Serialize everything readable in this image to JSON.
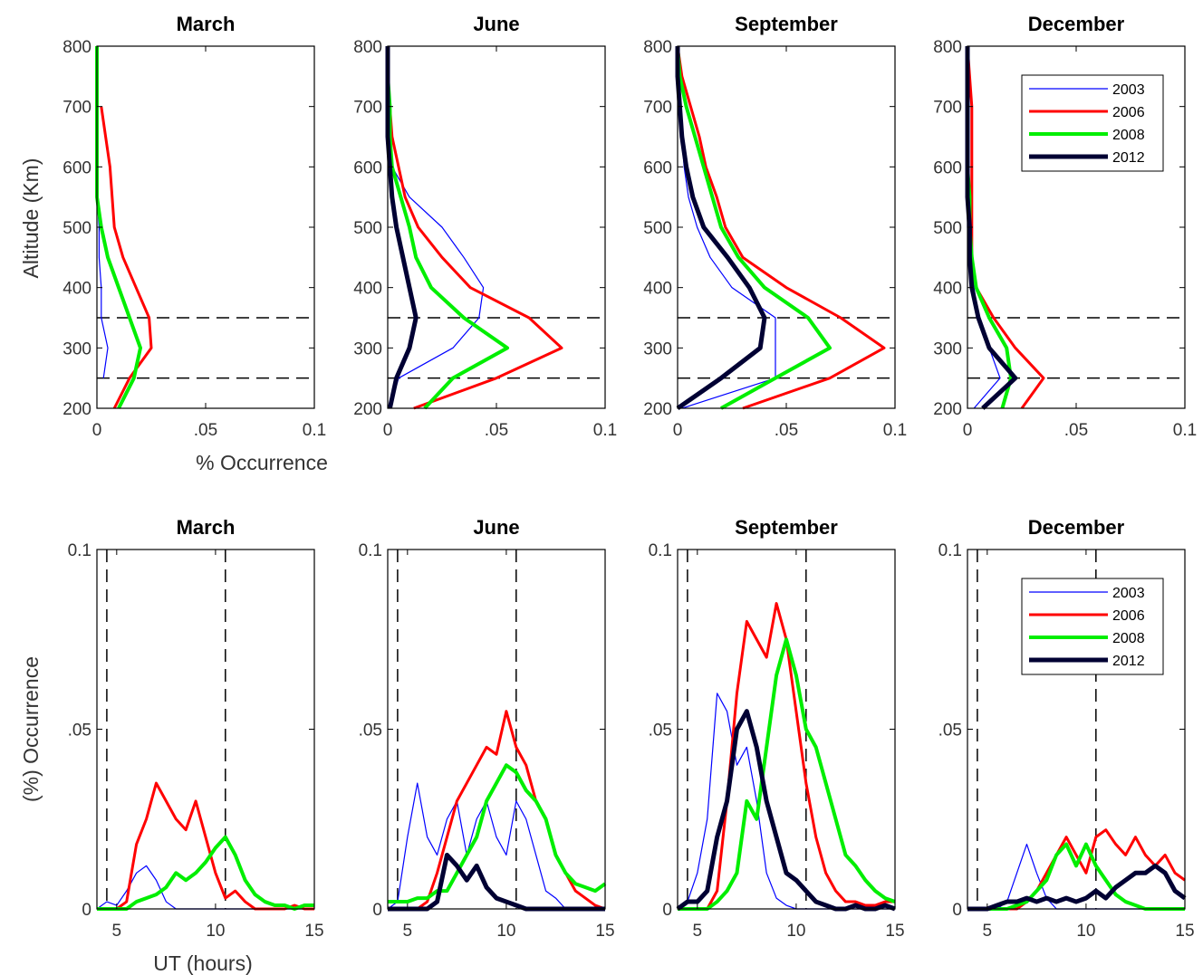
{
  "chart_data": [
    {
      "type": "line",
      "title": "March",
      "xlabel": "% Occurrence",
      "ylabel": "Altitude (Km)",
      "y": [
        200,
        250,
        300,
        350,
        400,
        450,
        500,
        550,
        600,
        650,
        700,
        750,
        800
      ],
      "series": [
        {
          "color": "#0000ff",
          "values": [
            null,
            0.003,
            0.005,
            0.002,
            0.002,
            0.001,
            0.001,
            0,
            null,
            null,
            null,
            null,
            null
          ]
        },
        {
          "color": "#ff0000",
          "values": [
            0.008,
            0.015,
            0.025,
            0.024,
            0.018,
            0.012,
            0.008,
            0.007,
            0.006,
            0.004,
            0.002,
            null,
            null
          ]
        },
        {
          "color": "#00ee00",
          "values": [
            0.01,
            0.017,
            0.02,
            0.015,
            0.01,
            0.005,
            0.002,
            0,
            0,
            0,
            0,
            0,
            0
          ]
        }
      ],
      "hlines": [
        250,
        350
      ],
      "xlim": [
        0,
        0.1
      ],
      "xticks": [
        0,
        {
          "value": 0.05,
          "label": ".05"
        },
        0.1
      ],
      "ylim": [
        200,
        800
      ],
      "yticks": [
        200,
        300,
        400,
        500,
        600,
        700,
        800
      ]
    },
    {
      "type": "line",
      "title": "June",
      "y": [
        200,
        250,
        300,
        350,
        400,
        450,
        500,
        550,
        600,
        650,
        700,
        750,
        800
      ],
      "series": [
        {
          "color": "#0000ff",
          "values": [
            0.001,
            0.005,
            0.03,
            0.042,
            0.044,
            0.035,
            0.025,
            0.01,
            0.002,
            0.001,
            0.001,
            0,
            0
          ]
        },
        {
          "color": "#ff0000",
          "values": [
            0.012,
            0.05,
            0.08,
            0.065,
            0.038,
            0.025,
            0.014,
            0.008,
            0.005,
            0.002,
            0.001,
            0,
            0
          ]
        },
        {
          "color": "#00ee00",
          "values": [
            0.017,
            0.03,
            0.055,
            0.035,
            0.02,
            0.013,
            0.01,
            0.006,
            0.002,
            0.001,
            0.001,
            0,
            0
          ]
        },
        {
          "color": "#000033",
          "values": [
            0.001,
            0.004,
            0.01,
            0.013,
            0.01,
            0.007,
            0.004,
            0.002,
            0.001,
            0,
            0,
            0,
            0
          ]
        }
      ],
      "hlines": [
        250,
        350
      ],
      "xlim": [
        0,
        0.1
      ],
      "xticks": [
        0,
        {
          "value": 0.05,
          "label": ".05"
        },
        0.1
      ],
      "ylim": [
        200,
        800
      ],
      "yticks": [
        200,
        300,
        400,
        500,
        600,
        700,
        800
      ]
    },
    {
      "type": "line",
      "title": "September",
      "y": [
        200,
        250,
        300,
        350,
        400,
        450,
        500,
        550,
        600,
        650,
        700,
        750,
        800
      ],
      "series": [
        {
          "color": "#0000ff",
          "values": [
            0.002,
            0.045,
            0.045,
            0.045,
            0.025,
            0.015,
            0.009,
            0.005,
            0.003,
            0.002,
            0.001,
            0,
            0
          ]
        },
        {
          "color": "#ff0000",
          "values": [
            0.03,
            0.07,
            0.095,
            0.075,
            0.05,
            0.03,
            0.022,
            0.018,
            0.013,
            0.01,
            0.006,
            0.002,
            0
          ]
        },
        {
          "color": "#00ee00",
          "values": [
            0.02,
            0.045,
            0.07,
            0.06,
            0.04,
            0.028,
            0.02,
            0.016,
            0.012,
            0.008,
            0.004,
            0.001,
            0
          ]
        },
        {
          "color": "#000033",
          "values": [
            0,
            0.02,
            0.038,
            0.04,
            0.033,
            0.023,
            0.012,
            0.007,
            0.004,
            0.002,
            0.001,
            0,
            0
          ]
        }
      ],
      "hlines": [
        250,
        350
      ],
      "xlim": [
        0,
        0.1
      ],
      "xticks": [
        0,
        {
          "value": 0.05,
          "label": ".05"
        },
        0.1
      ],
      "ylim": [
        200,
        800
      ],
      "yticks": [
        200,
        300,
        400,
        500,
        600,
        700,
        800
      ]
    },
    {
      "type": "line",
      "title": "December",
      "legend": "upper right",
      "y": [
        200,
        250,
        300,
        350,
        400,
        450,
        500,
        550,
        600,
        650,
        700,
        750,
        800
      ],
      "series": [
        {
          "name": "2003",
          "color": "#0000ff",
          "values": [
            0.003,
            0.015,
            0.01,
            0.005,
            0.003,
            0.001,
            0,
            0,
            0,
            0,
            0,
            0,
            0
          ]
        },
        {
          "name": "2006",
          "color": "#ff0000",
          "values": [
            0.025,
            0.035,
            0.022,
            0.012,
            0.004,
            0.002,
            0.002,
            0.002,
            0.002,
            0.002,
            0.002,
            0.001,
            0
          ]
        },
        {
          "name": "2008",
          "color": "#00ee00",
          "values": [
            0.016,
            0.02,
            0.018,
            0.01,
            0.004,
            0.002,
            0.001,
            0.001,
            0,
            0,
            0,
            0,
            0
          ]
        },
        {
          "name": "2012",
          "color": "#000033",
          "values": [
            0.007,
            0.022,
            0.01,
            0.005,
            0.002,
            0.001,
            0.001,
            0,
            0,
            0,
            0,
            0,
            0
          ]
        }
      ],
      "hlines": [
        250,
        350
      ],
      "xlim": [
        0,
        0.1
      ],
      "xticks": [
        0,
        {
          "value": 0.05,
          "label": ".05"
        },
        0.1
      ],
      "ylim": [
        200,
        800
      ],
      "yticks": [
        200,
        300,
        400,
        500,
        600,
        700,
        800
      ]
    },
    {
      "type": "line",
      "title": "March",
      "xlabel": "UT (hours)",
      "ylabel": "(%) Occurrence",
      "x": [
        4,
        4.5,
        5,
        5.5,
        6,
        6.5,
        7,
        7.5,
        8,
        8.5,
        9,
        9.5,
        10,
        10.5,
        11,
        11.5,
        12,
        12.5,
        13,
        13.5,
        14,
        14.5,
        15
      ],
      "series": [
        {
          "color": "#0000ff",
          "values": [
            0,
            0.002,
            0.001,
            0.005,
            0.01,
            0.012,
            0.008,
            0.002,
            0,
            0,
            0,
            0,
            0,
            0,
            0,
            0,
            0,
            0,
            0,
            0,
            0,
            0,
            0
          ]
        },
        {
          "color": "#ff0000",
          "values": [
            0,
            0,
            0,
            0.002,
            0.018,
            0.025,
            0.035,
            0.03,
            0.025,
            0.022,
            0.03,
            0.02,
            0.01,
            0.003,
            0.005,
            0.002,
            0,
            0,
            0,
            0,
            0.001,
            0,
            0
          ]
        },
        {
          "color": "#00ee00",
          "values": [
            0,
            0,
            0,
            0,
            0.002,
            0.003,
            0.004,
            0.006,
            0.01,
            0.008,
            0.01,
            0.013,
            0.017,
            0.02,
            0.015,
            0.008,
            0.004,
            0.002,
            0.001,
            0.001,
            0,
            0.001,
            0.001
          ]
        }
      ],
      "vlines": [
        4.5,
        10.5
      ],
      "xlim": [
        4,
        15
      ],
      "xticks": [
        5,
        10,
        15
      ],
      "ylim": [
        0,
        0.1
      ],
      "yticks": [
        0,
        {
          "value": 0.05,
          "label": ".05"
        },
        0.1
      ]
    },
    {
      "type": "line",
      "title": "June",
      "x": [
        4,
        4.5,
        5,
        5.5,
        6,
        6.5,
        7,
        7.5,
        8,
        8.5,
        9,
        9.5,
        10,
        10.5,
        11,
        11.5,
        12,
        12.5,
        13,
        13.5,
        14,
        14.5,
        15
      ],
      "series": [
        {
          "color": "#0000ff",
          "values": [
            0,
            0.002,
            0.02,
            0.035,
            0.02,
            0.015,
            0.025,
            0.03,
            0.015,
            0.025,
            0.03,
            0.02,
            0.015,
            0.03,
            0.025,
            0.015,
            0.005,
            0.003,
            0,
            0,
            0,
            0,
            0
          ]
        },
        {
          "color": "#ff0000",
          "values": [
            0,
            0,
            0,
            0,
            0.002,
            0.01,
            0.02,
            0.03,
            0.035,
            0.04,
            0.045,
            0.043,
            0.055,
            0.045,
            0.04,
            0.03,
            0.025,
            0.015,
            0.01,
            0.005,
            0.003,
            0.001,
            0
          ]
        },
        {
          "color": "#00ee00",
          "values": [
            0.002,
            0.002,
            0.002,
            0.003,
            0.003,
            0.005,
            0.005,
            0.01,
            0.015,
            0.02,
            0.03,
            0.035,
            0.04,
            0.038,
            0.033,
            0.03,
            0.025,
            0.015,
            0.01,
            0.007,
            0.006,
            0.005,
            0.007
          ]
        },
        {
          "color": "#000033",
          "values": [
            0,
            0,
            0,
            0,
            0,
            0.002,
            0.015,
            0.012,
            0.008,
            0.012,
            0.006,
            0.003,
            0.002,
            0.001,
            0,
            0,
            0,
            0,
            0,
            0,
            0,
            0,
            0
          ]
        }
      ],
      "vlines": [
        4.5,
        10.5
      ],
      "xlim": [
        4,
        15
      ],
      "xticks": [
        5,
        10,
        15
      ],
      "ylim": [
        0,
        0.1
      ],
      "yticks": [
        0,
        {
          "value": 0.05,
          "label": ".05"
        },
        0.1
      ]
    },
    {
      "type": "line",
      "title": "September",
      "x": [
        4,
        4.5,
        5,
        5.5,
        6,
        6.5,
        7,
        7.5,
        8,
        8.5,
        9,
        9.5,
        10,
        10.5,
        11,
        11.5,
        12,
        12.5,
        13,
        13.5,
        14,
        14.5,
        15
      ],
      "series": [
        {
          "color": "#0000ff",
          "values": [
            0,
            0.002,
            0.01,
            0.025,
            0.06,
            0.055,
            0.04,
            0.045,
            0.03,
            0.01,
            0.003,
            0.001,
            0,
            0,
            0,
            0,
            0,
            0,
            0,
            0,
            0,
            0,
            0
          ]
        },
        {
          "color": "#ff0000",
          "values": [
            0,
            0,
            0,
            0,
            0.005,
            0.03,
            0.06,
            0.08,
            0.075,
            0.07,
            0.085,
            0.075,
            0.055,
            0.035,
            0.02,
            0.01,
            0.005,
            0.002,
            0.002,
            0.001,
            0.001,
            0.002,
            0.002
          ]
        },
        {
          "color": "#00ee00",
          "values": [
            0,
            0,
            0,
            0,
            0.002,
            0.005,
            0.01,
            0.03,
            0.025,
            0.045,
            0.065,
            0.075,
            0.065,
            0.05,
            0.045,
            0.035,
            0.025,
            0.015,
            0.012,
            0.008,
            0.005,
            0.003,
            0.002
          ]
        },
        {
          "color": "#000033",
          "values": [
            0,
            0.002,
            0.002,
            0.005,
            0.02,
            0.03,
            0.05,
            0.055,
            0.045,
            0.03,
            0.02,
            0.01,
            0.008,
            0.005,
            0.002,
            0.001,
            0,
            0,
            0.001,
            0,
            0,
            0.001,
            0
          ]
        }
      ],
      "vlines": [
        4.5,
        10.5
      ],
      "xlim": [
        4,
        15
      ],
      "xticks": [
        5,
        10,
        15
      ],
      "ylim": [
        0,
        0.1
      ],
      "yticks": [
        0,
        {
          "value": 0.05,
          "label": ".05"
        },
        0.1
      ]
    },
    {
      "type": "line",
      "title": "December",
      "legend": "upper right",
      "x": [
        4,
        4.5,
        5,
        5.5,
        6,
        6.5,
        7,
        7.5,
        8,
        8.5,
        9,
        9.5,
        10,
        10.5,
        11,
        11.5,
        12,
        12.5,
        13,
        13.5,
        14,
        14.5,
        15
      ],
      "series": [
        {
          "name": "2003",
          "color": "#0000ff",
          "values": [
            0,
            0,
            0,
            0,
            0.002,
            0.01,
            0.018,
            0.01,
            0.003,
            0,
            0,
            0,
            0,
            0,
            0,
            0,
            0,
            0,
            0,
            0,
            0,
            0,
            0
          ]
        },
        {
          "name": "2006",
          "color": "#ff0000",
          "values": [
            0,
            0,
            0,
            0,
            0,
            0,
            0.002,
            0.005,
            0.01,
            0.015,
            0.02,
            0.015,
            0.01,
            0.02,
            0.022,
            0.018,
            0.015,
            0.02,
            0.015,
            0.012,
            0.015,
            0.01,
            0.008
          ]
        },
        {
          "name": "2008",
          "color": "#00ee00",
          "values": [
            0,
            0,
            0,
            0,
            0,
            0.001,
            0.002,
            0.005,
            0.008,
            0.015,
            0.018,
            0.012,
            0.018,
            0.012,
            0.008,
            0.004,
            0.002,
            0.001,
            0,
            0,
            0,
            0,
            0
          ]
        },
        {
          "name": "2012",
          "color": "#000033",
          "values": [
            0,
            0,
            0,
            0.001,
            0.002,
            0.002,
            0.003,
            0.002,
            0.003,
            0.002,
            0.003,
            0.002,
            0.003,
            0.005,
            0.003,
            0.006,
            0.008,
            0.01,
            0.01,
            0.012,
            0.01,
            0.005,
            0.003
          ]
        }
      ],
      "vlines": [
        4.5,
        10.5
      ],
      "xlim": [
        4,
        15
      ],
      "xticks": [
        5,
        10,
        15
      ],
      "ylim": [
        0,
        0.1
      ],
      "yticks": [
        0,
        {
          "value": 0.05,
          "label": ".05"
        },
        0.1
      ]
    }
  ]
}
